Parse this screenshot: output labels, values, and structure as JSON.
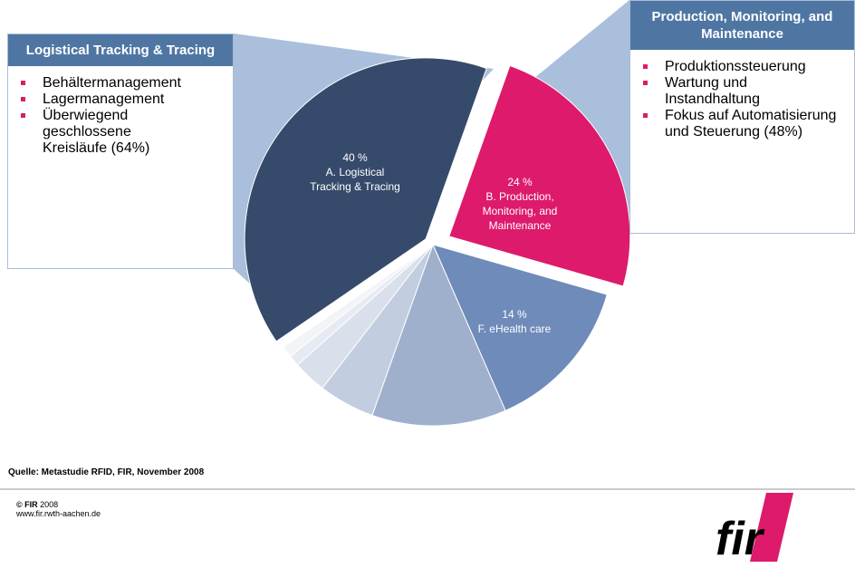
{
  "chart_data": {
    "type": "pie",
    "categories": [
      "A. Logistical Tracking & Tracing",
      "B. Production, Monitoring, and Maintenance",
      "F. eHealth care",
      null,
      null,
      null,
      null,
      null
    ],
    "values": [
      40,
      24,
      14,
      12,
      5,
      3,
      1,
      1
    ],
    "value_labels": [
      "40 %",
      "24 %",
      "14 %",
      null,
      null,
      null,
      null,
      null
    ],
    "colors": [
      "#364a6b",
      "#dd1a6b",
      "#6e8bb9",
      "#9fb0cc",
      "#c3cde0",
      "#d9e0ec",
      "#e6eaf2",
      "#f2f4f8"
    ]
  },
  "callouts": [
    {
      "title": "Logistical Tracking & Tracing",
      "items": [
        "Behältermanagement",
        "Lagermanagement",
        "Überwiegend geschlossene Kreisläufe (64%)"
      ]
    },
    {
      "title": "Production, Monitoring, and Maintenance",
      "items": [
        "Produktionssteuerung",
        "Wartung und Instandhaltung",
        "Fokus auf Automatisierung und Steuerung (48%)"
      ]
    }
  ],
  "footer": {
    "source": "Quelle: Metastudie RFID, FIR, November 2008",
    "copyright_brand": "© FIR",
    "copyright_year": "2008",
    "url": "www.fir.rwth-aachen.de",
    "logo": "fir"
  }
}
